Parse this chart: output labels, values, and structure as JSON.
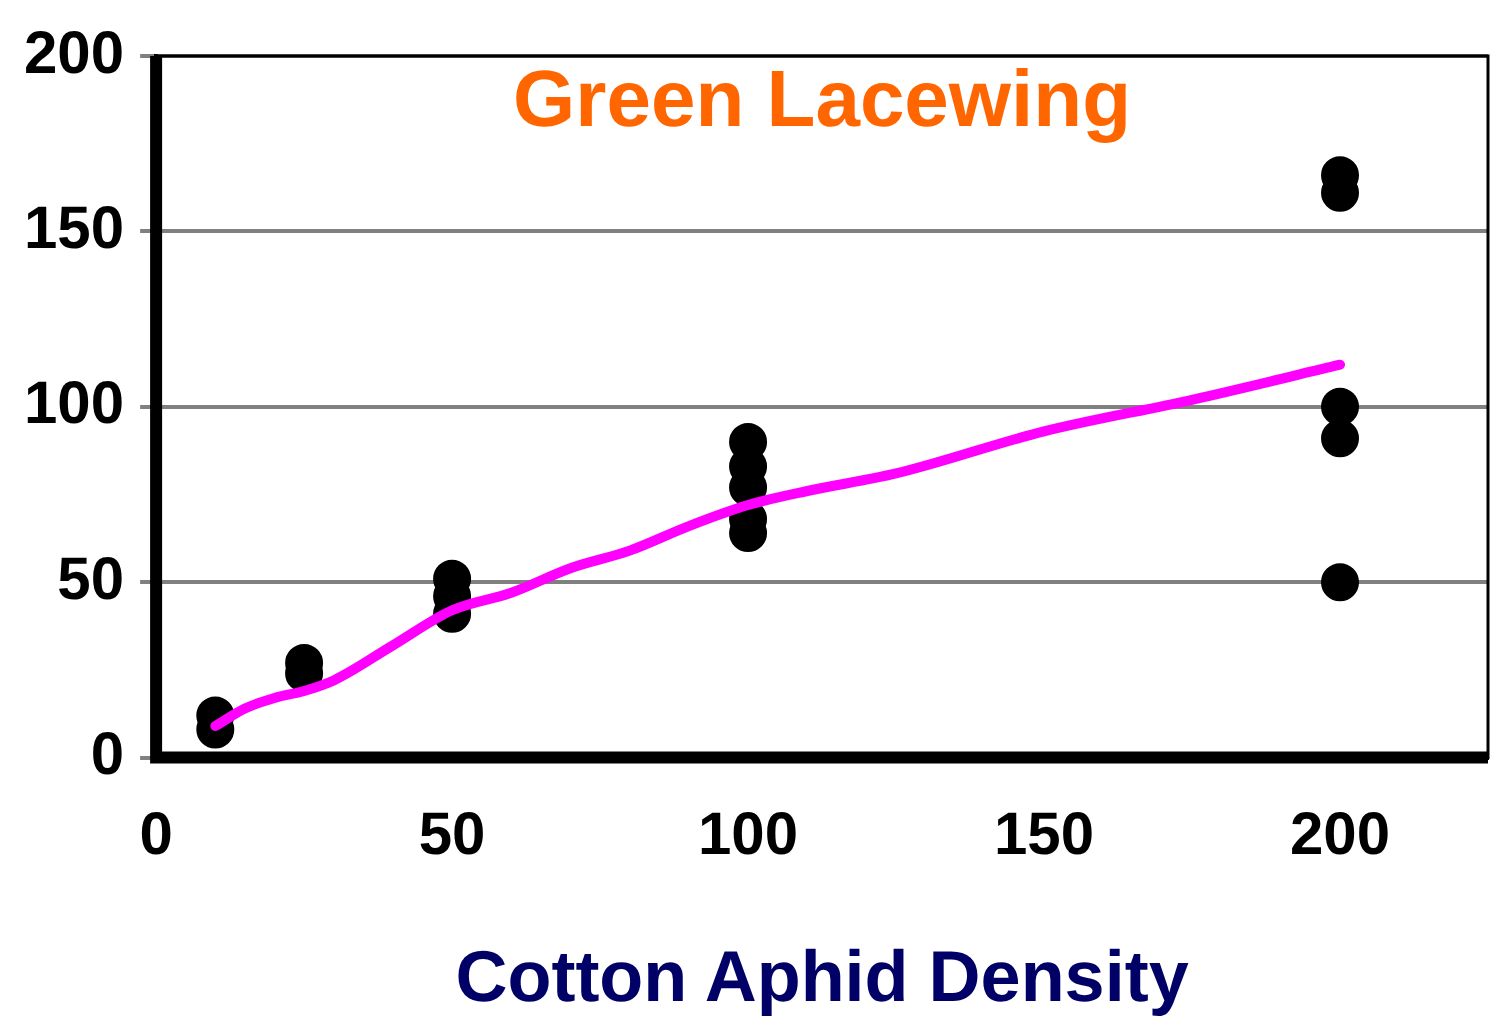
{
  "chart_data": {
    "type": "scatter",
    "title": "Green Lacewing",
    "xlabel": "Cotton Aphid Density",
    "xlim": [
      0,
      225
    ],
    "xticks": [
      0,
      50,
      100,
      150,
      200
    ],
    "ylim": [
      0,
      200
    ],
    "yticks": [
      0,
      50,
      100,
      150,
      200
    ],
    "grid": "y",
    "marker": "circle",
    "series": [
      {
        "color": "#000000",
        "x": [
          10,
          10,
          25,
          25,
          50,
          50,
          50,
          100,
          100,
          100,
          100,
          100,
          200,
          200,
          200,
          200,
          200
        ],
        "values": [
          12,
          8,
          27,
          24,
          51,
          46,
          41,
          90,
          83,
          77,
          68,
          64,
          166,
          161,
          100,
          91,
          50
        ]
      },
      {
        "type": "line",
        "color": "#ff00ff",
        "marker": "none",
        "x": [
          10,
          15,
          20,
          25,
          30,
          40,
          50,
          60,
          70,
          80,
          90,
          100,
          110,
          125,
          150,
          175,
          200
        ],
        "values": [
          9,
          14,
          17,
          19,
          22,
          32,
          42,
          47,
          54,
          59,
          66,
          72,
          76,
          81,
          93,
          102,
          112
        ]
      }
    ]
  }
}
